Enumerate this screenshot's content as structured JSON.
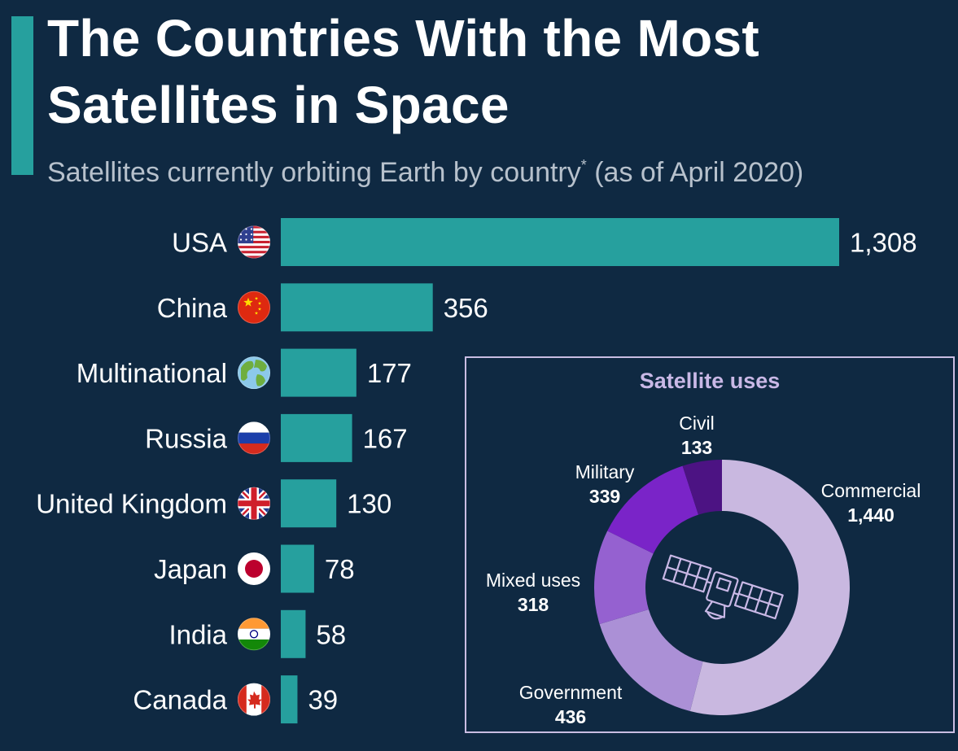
{
  "title": "The Countries With the Most Satellites in Space",
  "subtitle": "Satellites currently orbiting Earth by country",
  "subtitle_marker": "*",
  "subtitle_suffix": " (as of April 2020)",
  "colors": {
    "background": "#0f2942",
    "accent": "#26a09e",
    "bar": "#26a09e",
    "text": "#ffffff",
    "subtitle": "#b7c1cc",
    "donut_title": "#c9b8e6",
    "commercial": "#c9b8e0",
    "government": "#ab90d6",
    "mixed": "#9561d0",
    "military": "#7a24c8",
    "civil": "#4c1383"
  },
  "chart_data": [
    {
      "type": "bar",
      "orientation": "horizontal",
      "categories": [
        "USA",
        "China",
        "Multinational",
        "Russia",
        "United Kingdom",
        "Japan",
        "India",
        "Canada"
      ],
      "values": [
        1308,
        356,
        177,
        167,
        130,
        78,
        58,
        39
      ],
      "value_labels": [
        "1,308",
        "356",
        "177",
        "167",
        "130",
        "78",
        "58",
        "39"
      ],
      "icons": [
        "usa-flag-icon",
        "china-flag-icon",
        "globe-icon",
        "russia-flag-icon",
        "uk-flag-icon",
        "japan-flag-icon",
        "india-flag-icon",
        "canada-flag-icon"
      ],
      "xlim": [
        0,
        1308
      ],
      "grid": false,
      "legend": "none"
    },
    {
      "type": "pie",
      "variant": "donut",
      "title": "Satellite uses",
      "center_icon": "satellite-icon",
      "slices": [
        {
          "label": "Commercial",
          "value": 1440,
          "value_label": "1,440",
          "color": "#c9b8e0"
        },
        {
          "label": "Government",
          "value": 436,
          "value_label": "436",
          "color": "#ab90d6"
        },
        {
          "label": "Mixed uses",
          "value": 318,
          "value_label": "318",
          "color": "#9561d0"
        },
        {
          "label": "Military",
          "value": 339,
          "value_label": "339",
          "color": "#7a24c8"
        },
        {
          "label": "Civil",
          "value": 133,
          "value_label": "133",
          "color": "#4c1383"
        }
      ]
    }
  ]
}
